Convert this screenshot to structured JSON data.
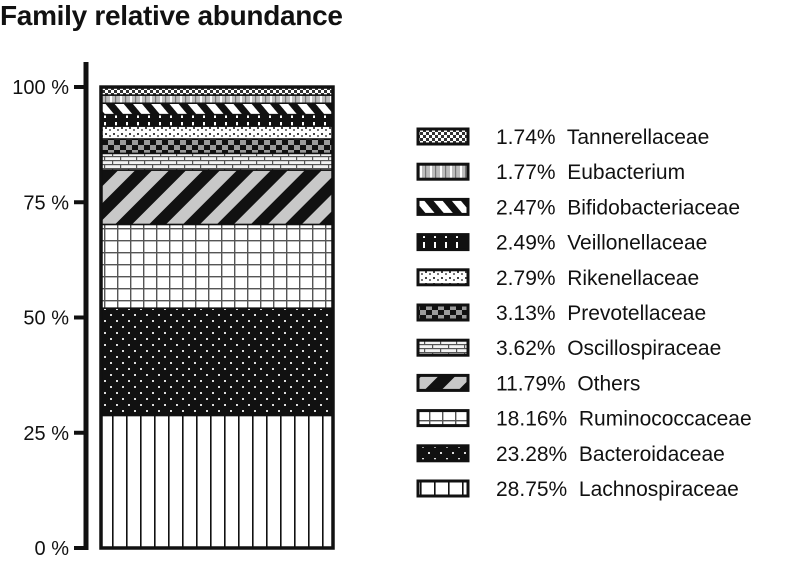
{
  "chart_data": {
    "type": "bar",
    "stacked": true,
    "title": "Family relative abundance",
    "xlabel": "",
    "ylabel": "",
    "ylim": [
      0,
      100
    ],
    "yticks": [
      0,
      25,
      50,
      75,
      100
    ],
    "ytick_labels": [
      "0 %",
      "25 %",
      "50 %",
      "75 %",
      "100 %"
    ],
    "legend_position": "right",
    "series": [
      {
        "name": "Lachnospiraceae",
        "value": 28.75,
        "label": "28.75%",
        "pattern": "vlines"
      },
      {
        "name": "Bacteroidaceae",
        "value": 23.28,
        "label": "23.28%",
        "pattern": "dots-on-black"
      },
      {
        "name": "Ruminococcaceae",
        "value": 18.16,
        "label": "18.16%",
        "pattern": "grid"
      },
      {
        "name": "Others",
        "value": 11.79,
        "label": "11.79%",
        "pattern": "diagonal"
      },
      {
        "name": "Oscillospiraceae",
        "value": 3.62,
        "label": "3.62%",
        "pattern": "bricks"
      },
      {
        "name": "Prevotellaceae",
        "value": 3.13,
        "label": "3.13%",
        "pattern": "checker-dark"
      },
      {
        "name": "Rikenellaceae",
        "value": 2.79,
        "label": "2.79%",
        "pattern": "speckle"
      },
      {
        "name": "Veillonellaceae",
        "value": 2.49,
        "label": "2.49%",
        "pattern": "white-dashes-on-black"
      },
      {
        "name": "Bifidobacteriaceae",
        "value": 2.47,
        "label": "2.47%",
        "pattern": "zigzag"
      },
      {
        "name": "Eubacterium",
        "value": 1.77,
        "label": "1.77%",
        "pattern": "gray-blocks"
      },
      {
        "name": "Tannerellaceae",
        "value": 1.74,
        "label": "1.74%",
        "pattern": "fine-checker"
      }
    ]
  }
}
